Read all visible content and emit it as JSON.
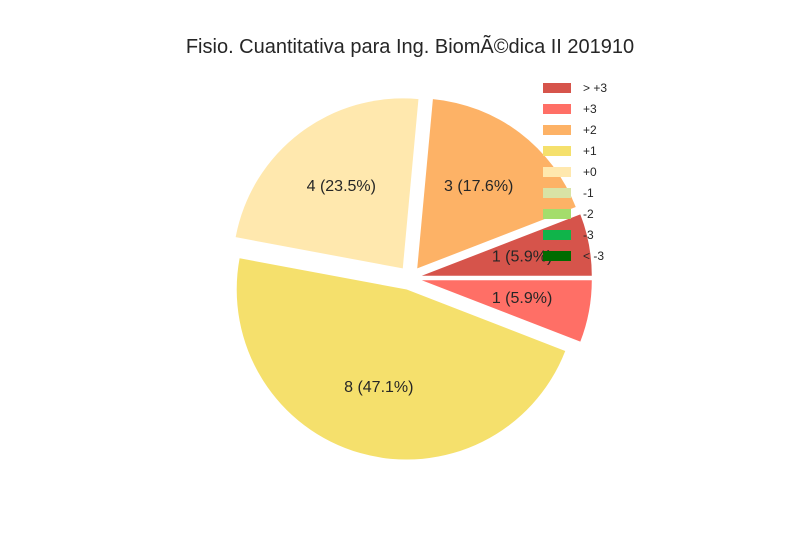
{
  "chart_data": {
    "type": "pie",
    "title": "Fisio. Cuantitativa para Ing. BiomÃ©dica II 201910",
    "legend_position": "top-right",
    "legend": [
      {
        "label": "> +3",
        "color": "#d6544b"
      },
      {
        "label": "+3",
        "color": "#ff6f66"
      },
      {
        "label": "+2",
        "color": "#fdb266"
      },
      {
        "label": "+1",
        "color": "#f5e06c"
      },
      {
        "label": "+0",
        "color": "#ffe8ae"
      },
      {
        "label": "-1",
        "color": "#d9e3a5"
      },
      {
        "label": "-2",
        "color": "#a4dd6c"
      },
      {
        "label": "-3",
        "color": "#10b44a"
      },
      {
        "label": "< -3",
        "color": "#006b00"
      }
    ],
    "slices": [
      {
        "category": "> +3",
        "value": 1,
        "label": "1 (5.9%)",
        "color": "#d6544b"
      },
      {
        "category": "+2",
        "value": 3,
        "label": "3 (17.6%)",
        "color": "#fdb266"
      },
      {
        "category": "+0",
        "value": 4,
        "label": "4 (23.5%)",
        "color": "#ffe8ae"
      },
      {
        "category": "+1",
        "value": 8,
        "label": "8 (47.1%)",
        "color": "#f5e06c"
      },
      {
        "category": "+3",
        "value": 1,
        "label": "1 (5.9%)",
        "color": "#ff6f66"
      }
    ]
  }
}
